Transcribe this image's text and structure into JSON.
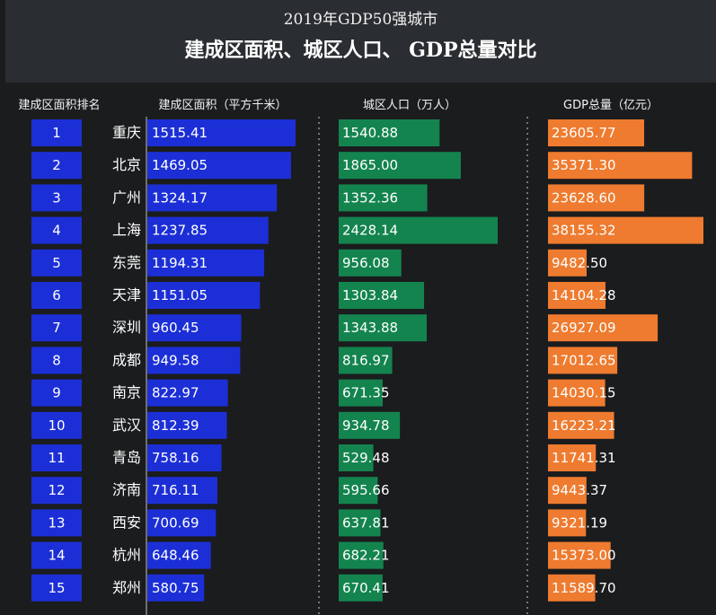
{
  "header": {
    "title": "2019年GDP50强城市",
    "subtitle": "建成区面积、城区人口、 GDP总量对比"
  },
  "columns": {
    "rank": "建成区面积排名",
    "area": "建成区面积（平方千米）",
    "pop": "城区人口（万人）",
    "gdp": "GDP总量（亿元）"
  },
  "colors": {
    "rank_box": "#1c2fd6",
    "area_bar": "#1c2fd6",
    "pop_bar": "#14844f",
    "gdp_bar": "#ee7b2f",
    "divider": "#cccccc"
  },
  "chart_data": {
    "type": "bar",
    "title": "",
    "categories": [
      "重庆",
      "北京",
      "广州",
      "上海",
      "东莞",
      "天津",
      "深圳",
      "成都",
      "南京",
      "武汉",
      "青岛",
      "济南",
      "西安",
      "杭州",
      "郑州"
    ],
    "ranks": [
      1,
      2,
      3,
      4,
      5,
      6,
      7,
      8,
      9,
      10,
      11,
      12,
      13,
      14,
      15
    ],
    "series": [
      {
        "name": "建成区面积（平方千米）",
        "values": [
          "1515.41",
          "1469.05",
          "1324.17",
          "1237.85",
          "1194.31",
          "1151.05",
          "960.45",
          "949.58",
          "822.97",
          "812.39",
          "758.16",
          "716.11",
          "700.69",
          "648.46",
          "580.75"
        ]
      },
      {
        "name": "城区人口（万人）",
        "values": [
          "1540.88",
          "1865.00",
          "1352.36",
          "2428.14",
          "956.08",
          "1303.84",
          "1343.88",
          "816.97",
          "671.35",
          "934.78",
          "529.48",
          "595.66",
          "637.81",
          "682.21",
          "670.41"
        ]
      },
      {
        "name": "GDP总量（亿元）",
        "values": [
          "23605.77",
          "35371.30",
          "23628.60",
          "38155.32",
          "9482.50",
          "14104.28",
          "26927.09",
          "17012.65",
          "14030.15",
          "16223.21",
          "11741.31",
          "9443.37",
          "9321.19",
          "15373.00",
          "11589.70"
        ]
      }
    ]
  }
}
